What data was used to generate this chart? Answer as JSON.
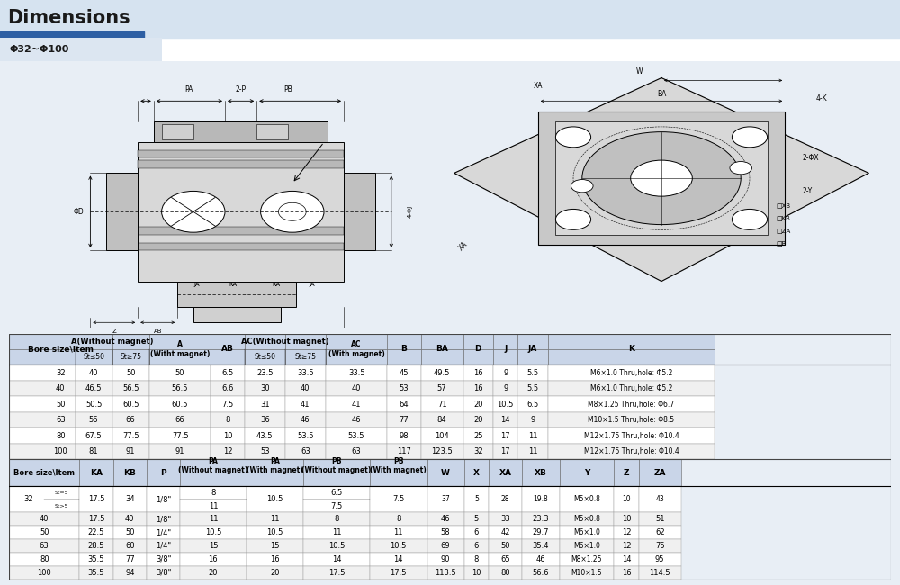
{
  "title": "Dimensions",
  "subtitle": "Φ32~Φ100",
  "bg_header": "#cdd9ea",
  "bg_blue_bar": "#2e74b5",
  "bg_subtitle": "#dce6f1",
  "bg_table_header": "#c9d5e8",
  "bg_white": "#ffffff",
  "bg_page": "#e8eef5",
  "table1_data": [
    [
      "32",
      "40",
      "50",
      "50",
      "6.5",
      "23.5",
      "33.5",
      "33.5",
      "45",
      "49.5",
      "16",
      "9",
      "5.5",
      "M6×1.0 Thru,hole: Φ5.2"
    ],
    [
      "40",
      "46.5",
      "56.5",
      "56.5",
      "6.6",
      "30",
      "40",
      "40",
      "53",
      "57",
      "16",
      "9",
      "5.5",
      "M6×1.0 Thru,hole: Φ5.2"
    ],
    [
      "50",
      "50.5",
      "60.5",
      "60.5",
      "7.5",
      "31",
      "41",
      "41",
      "64",
      "71",
      "20",
      "10.5",
      "6.5",
      "M8×1.25 Thru,hole: Φ6.7"
    ],
    [
      "63",
      "56",
      "66",
      "66",
      "8",
      "36",
      "46",
      "46",
      "77",
      "84",
      "20",
      "14",
      "9",
      "M10×1.5 Thru,hole: Φ8.5"
    ],
    [
      "80",
      "67.5",
      "77.5",
      "77.5",
      "10",
      "43.5",
      "53.5",
      "53.5",
      "98",
      "104",
      "25",
      "17",
      "11",
      "M12×1.75 Thru,hole: Φ10.4"
    ],
    [
      "100",
      "81",
      "91",
      "91",
      "12",
      "53",
      "63",
      "63",
      "117",
      "123.5",
      "32",
      "17",
      "11",
      "M12×1.75 Thru,hole: Φ10.4"
    ]
  ],
  "table2_data": [
    [
      "40",
      "17.5",
      "40",
      "1/8\"",
      "11",
      "11",
      "8",
      "8",
      "46",
      "5",
      "33",
      "23.3",
      "M5×0.8",
      "10",
      "51"
    ],
    [
      "50",
      "22.5",
      "50",
      "1/4\"",
      "10.5",
      "10.5",
      "11",
      "11",
      "58",
      "6",
      "42",
      "29.7",
      "M6×1.0",
      "12",
      "62"
    ],
    [
      "63",
      "28.5",
      "60",
      "1/4\"",
      "15",
      "15",
      "10.5",
      "10.5",
      "69",
      "6",
      "50",
      "35.4",
      "M6×1.0",
      "12",
      "75"
    ],
    [
      "80",
      "35.5",
      "77",
      "3/8\"",
      "16",
      "16",
      "14",
      "14",
      "90",
      "8",
      "65",
      "46",
      "M8×1.25",
      "14",
      "95"
    ],
    [
      "100",
      "35.5",
      "94",
      "3/8\"",
      "20",
      "20",
      "17.5",
      "17.5",
      "113.5",
      "10",
      "80",
      "56.6",
      "M10×1.5",
      "16",
      "114.5"
    ]
  ],
  "row32": [
    "32",
    "17.5",
    "34",
    "1/8\"",
    "8",
    "11",
    "10.5",
    "6.5",
    "7.5",
    "7.5",
    "37",
    "5",
    "28",
    "19.8",
    "M5×0.8",
    "10",
    "43"
  ]
}
